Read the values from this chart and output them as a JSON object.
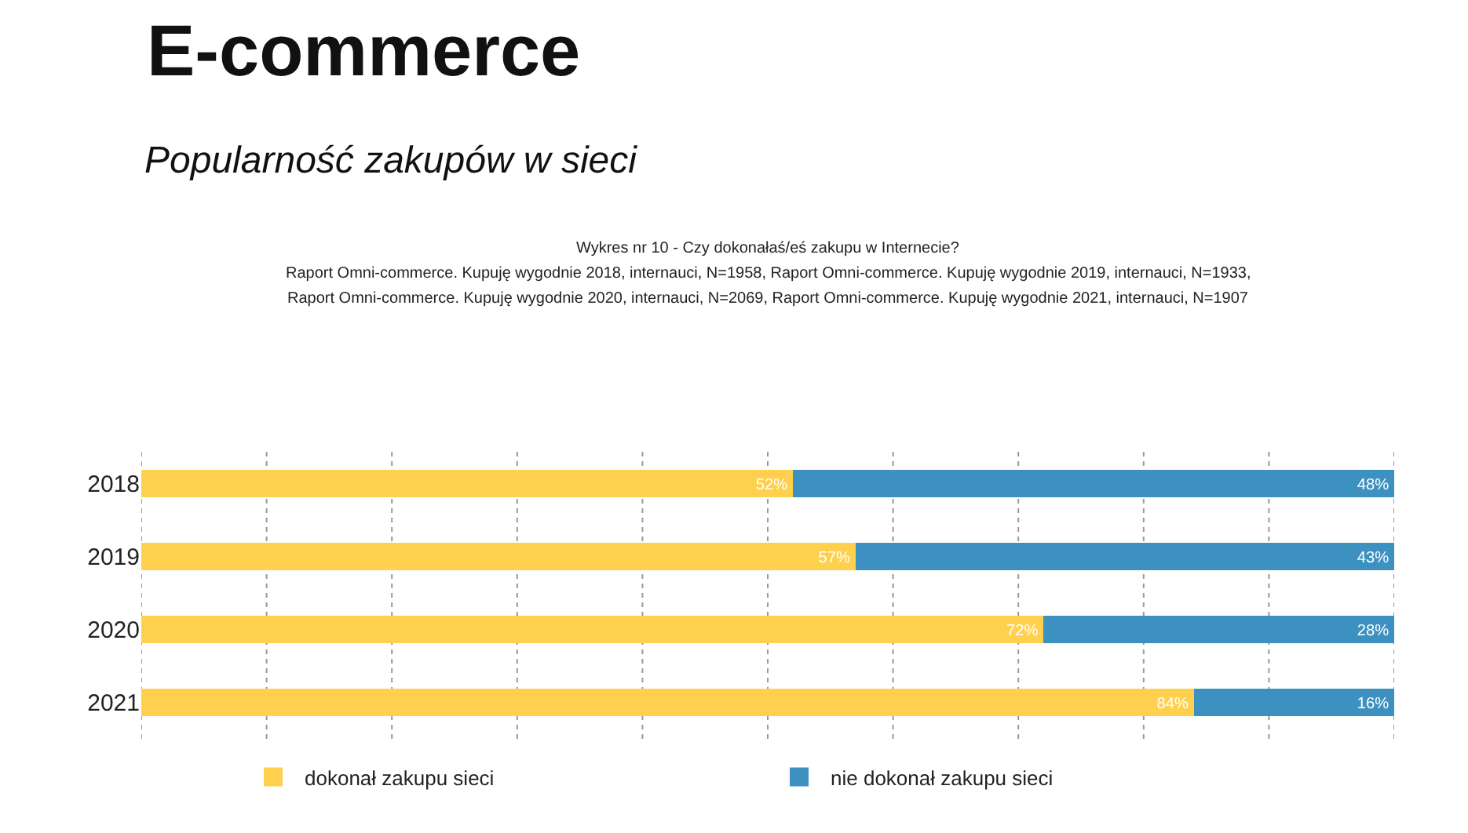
{
  "chart_data": {
    "type": "bar",
    "orientation": "horizontal",
    "stacked": true,
    "title": "E-commerce",
    "subtitle": "Popularność zakupów w sieci",
    "annotations": [
      "Wykres nr 10 - Czy dokonałaś/eś zakupu w Internecie?",
      "Raport Omni-commerce. Kupuję wygodnie 2018, internauci, N=1958, Raport Omni-commerce. Kupuję wygodnie 2019, internauci, N=1933,",
      "Raport Omni-commerce. Kupuję wygodnie 2020, internauci, N=2069, Raport Omni-commerce. Kupuję wygodnie 2021, internauci, N=1907"
    ],
    "categories": [
      "2018",
      "2019",
      "2020",
      "2021"
    ],
    "series": [
      {
        "name": "dokonał zakupu sieci",
        "color": "#ffd04d",
        "values": [
          52,
          57,
          72,
          84
        ],
        "value_labels": [
          "52%",
          "57%",
          "72%",
          "84%"
        ]
      },
      {
        "name": "nie dokonał zakupu sieci",
        "color": "#3d91c0",
        "values": [
          48,
          43,
          28,
          16
        ],
        "value_labels": [
          "48%",
          "43%",
          "28%",
          "16%"
        ]
      }
    ],
    "xlim": [
      0,
      100
    ],
    "xticks": [
      {
        "value": 0,
        "label": null
      },
      {
        "value": 10,
        "label": null
      },
      {
        "value": 20,
        "label": null
      },
      {
        "value": 30,
        "label": null
      },
      {
        "value": 40,
        "label": null
      },
      {
        "value": 50,
        "label": null
      },
      {
        "value": 60,
        "label": null
      },
      {
        "value": 70,
        "label": null
      },
      {
        "value": 80,
        "label": null
      },
      {
        "value": 90,
        "label": null
      },
      {
        "value": 100,
        "label": null
      }
    ],
    "grid": "x",
    "legend": "bottom",
    "tick_labels": "y"
  }
}
